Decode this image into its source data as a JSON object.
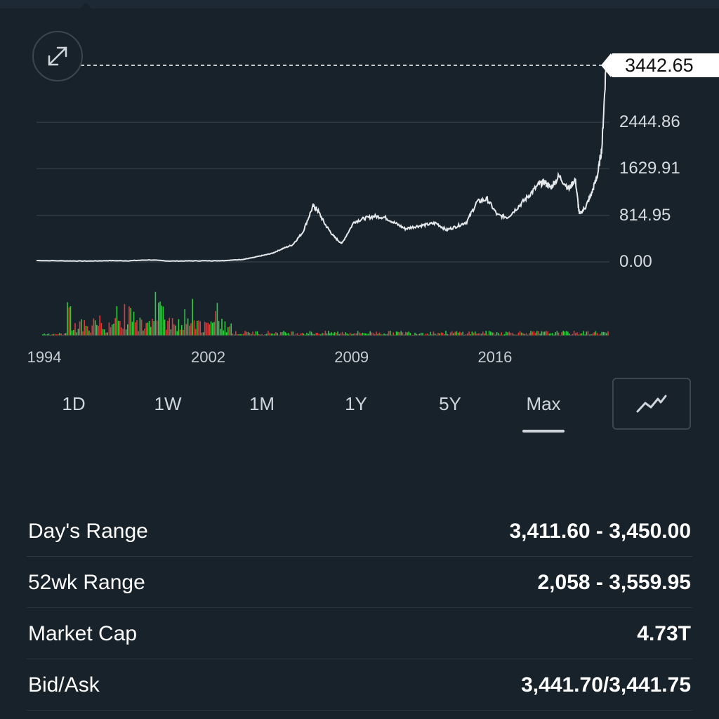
{
  "chart_data": {
    "type": "line",
    "current_price_label": "3442.65",
    "y_tick_labels": [
      "2444.86",
      "1629.91",
      "814.95",
      "0.00"
    ],
    "y_ticks": [
      2444.86,
      1629.91,
      814.95,
      0
    ],
    "ylim": [
      0,
      3442.65
    ],
    "x_tick_labels": [
      "1994",
      "2002",
      "2009",
      "2016"
    ],
    "xlim": [
      1993.5,
      2021.4
    ],
    "x": [
      1993.5,
      1995,
      1996,
      1997,
      1998,
      1999,
      2000,
      2001,
      2002,
      2002.5,
      2003,
      2003.6,
      2004,
      2004.5,
      2005,
      2005.5,
      2006,
      2006.5,
      2007.0,
      2007.2,
      2007.6,
      2008,
      2008.4,
      2009,
      2009.5,
      2010,
      2010.5,
      2011,
      2011.5,
      2012,
      2012.5,
      2013,
      2013.5,
      2014,
      2014.5,
      2015,
      2015.5,
      2016,
      2016.5,
      2017,
      2017.5,
      2018,
      2018.3,
      2018.6,
      2019,
      2019.5,
      2019.8,
      2020,
      2020.3,
      2020.6,
      2020.9,
      2021.1,
      2021.3
    ],
    "y": [
      25,
      18,
      15,
      22,
      20,
      35,
      15,
      18,
      20,
      22,
      30,
      45,
      70,
      110,
      150,
      230,
      300,
      520,
      980,
      920,
      650,
      450,
      320,
      700,
      760,
      800,
      780,
      680,
      580,
      620,
      650,
      680,
      560,
      620,
      700,
      1050,
      1100,
      820,
      780,
      960,
      1150,
      1350,
      1400,
      1300,
      1500,
      1280,
      1450,
      830,
      960,
      1200,
      1550,
      2000,
      3442.65
    ],
    "volume_series": [
      {
        "name": "up",
        "color": "#2ecc40"
      },
      {
        "name": "down",
        "color": "#e03a3a"
      }
    ],
    "grid": true,
    "legend": "none"
  },
  "ranges": [
    "1D",
    "1W",
    "1M",
    "1Y",
    "5Y",
    "Max"
  ],
  "active_range": "Max",
  "stats": [
    {
      "label": "Day's Range",
      "value": "3,411.60 - 3,450.00"
    },
    {
      "label": "52wk Range",
      "value": "2,058 - 3,559.95"
    },
    {
      "label": "Market Cap",
      "value": "4.73T"
    },
    {
      "label": "Bid/Ask",
      "value": "3,441.70/3,441.75"
    }
  ],
  "colors": {
    "background": "#18222b",
    "line": "#e6e9ec",
    "grid": "#3a454f"
  },
  "icons": {
    "expand": "expand-arrows-icon",
    "chart_type": "line-chart-icon"
  }
}
